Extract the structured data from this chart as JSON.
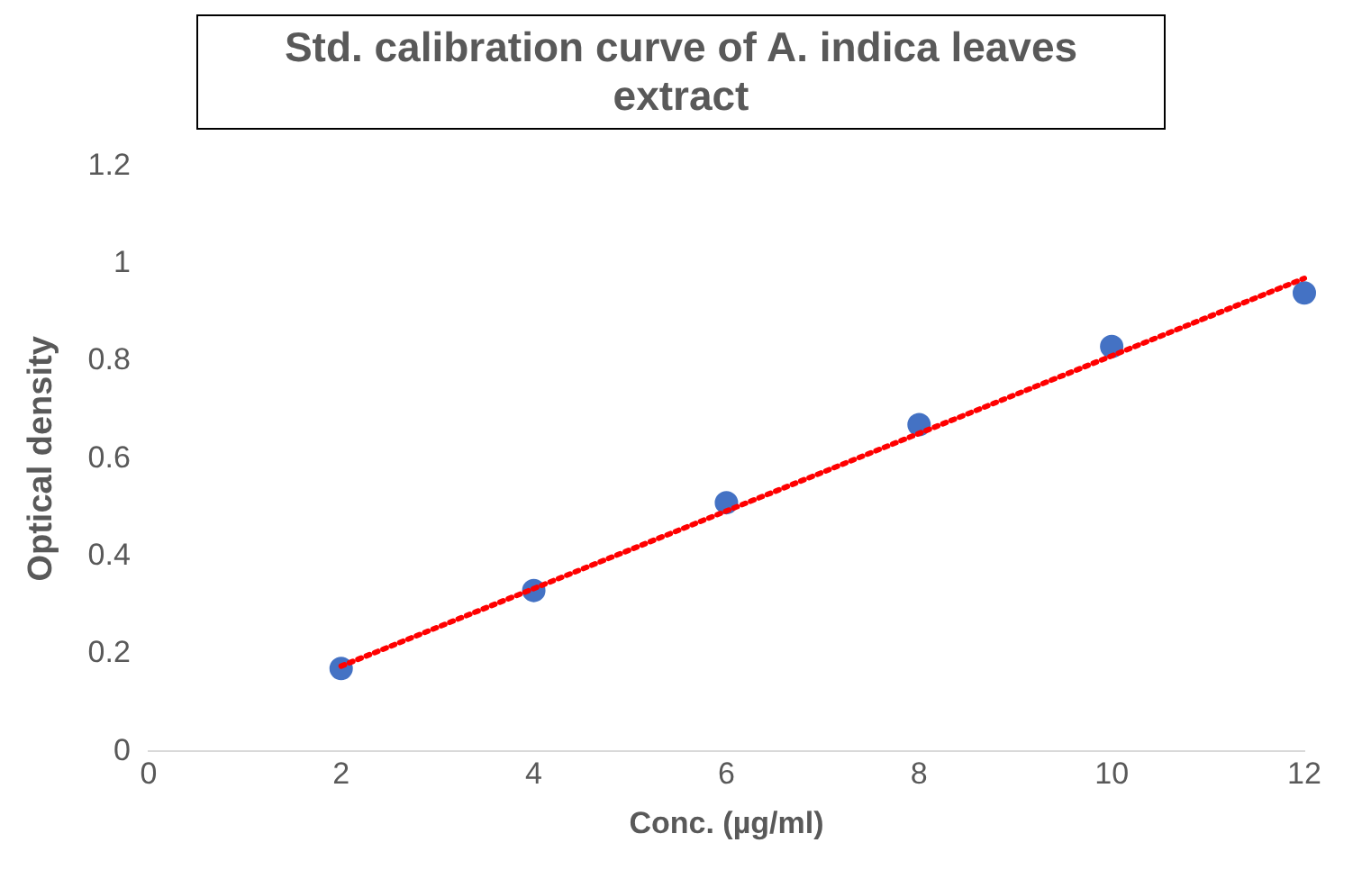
{
  "chart_data": {
    "type": "scatter",
    "title": "Std. calibration curve of A. indica leaves extract",
    "xlabel": "Conc. (µg/ml)",
    "ylabel": "Optical density",
    "xlim": [
      0,
      12
    ],
    "xticks": [
      0,
      2,
      4,
      6,
      8,
      10,
      12
    ],
    "ylim": [
      0,
      1.2
    ],
    "yticks": [
      0,
      0.2,
      0.4,
      0.6,
      0.8,
      1,
      1.2
    ],
    "grid": false,
    "legend": false,
    "series": [
      {
        "type": "scatter",
        "color": "#4472c4",
        "marker": "circle",
        "x": [
          2,
          4,
          6,
          8,
          10,
          12
        ],
        "values": [
          0.17,
          0.33,
          0.51,
          0.67,
          0.83,
          0.94
        ]
      },
      {
        "type": "line",
        "color": "#ff0000",
        "line_style": "dotted",
        "marker": "none",
        "x": [
          2,
          12
        ],
        "values": [
          0.175,
          0.97
        ]
      }
    ]
  }
}
